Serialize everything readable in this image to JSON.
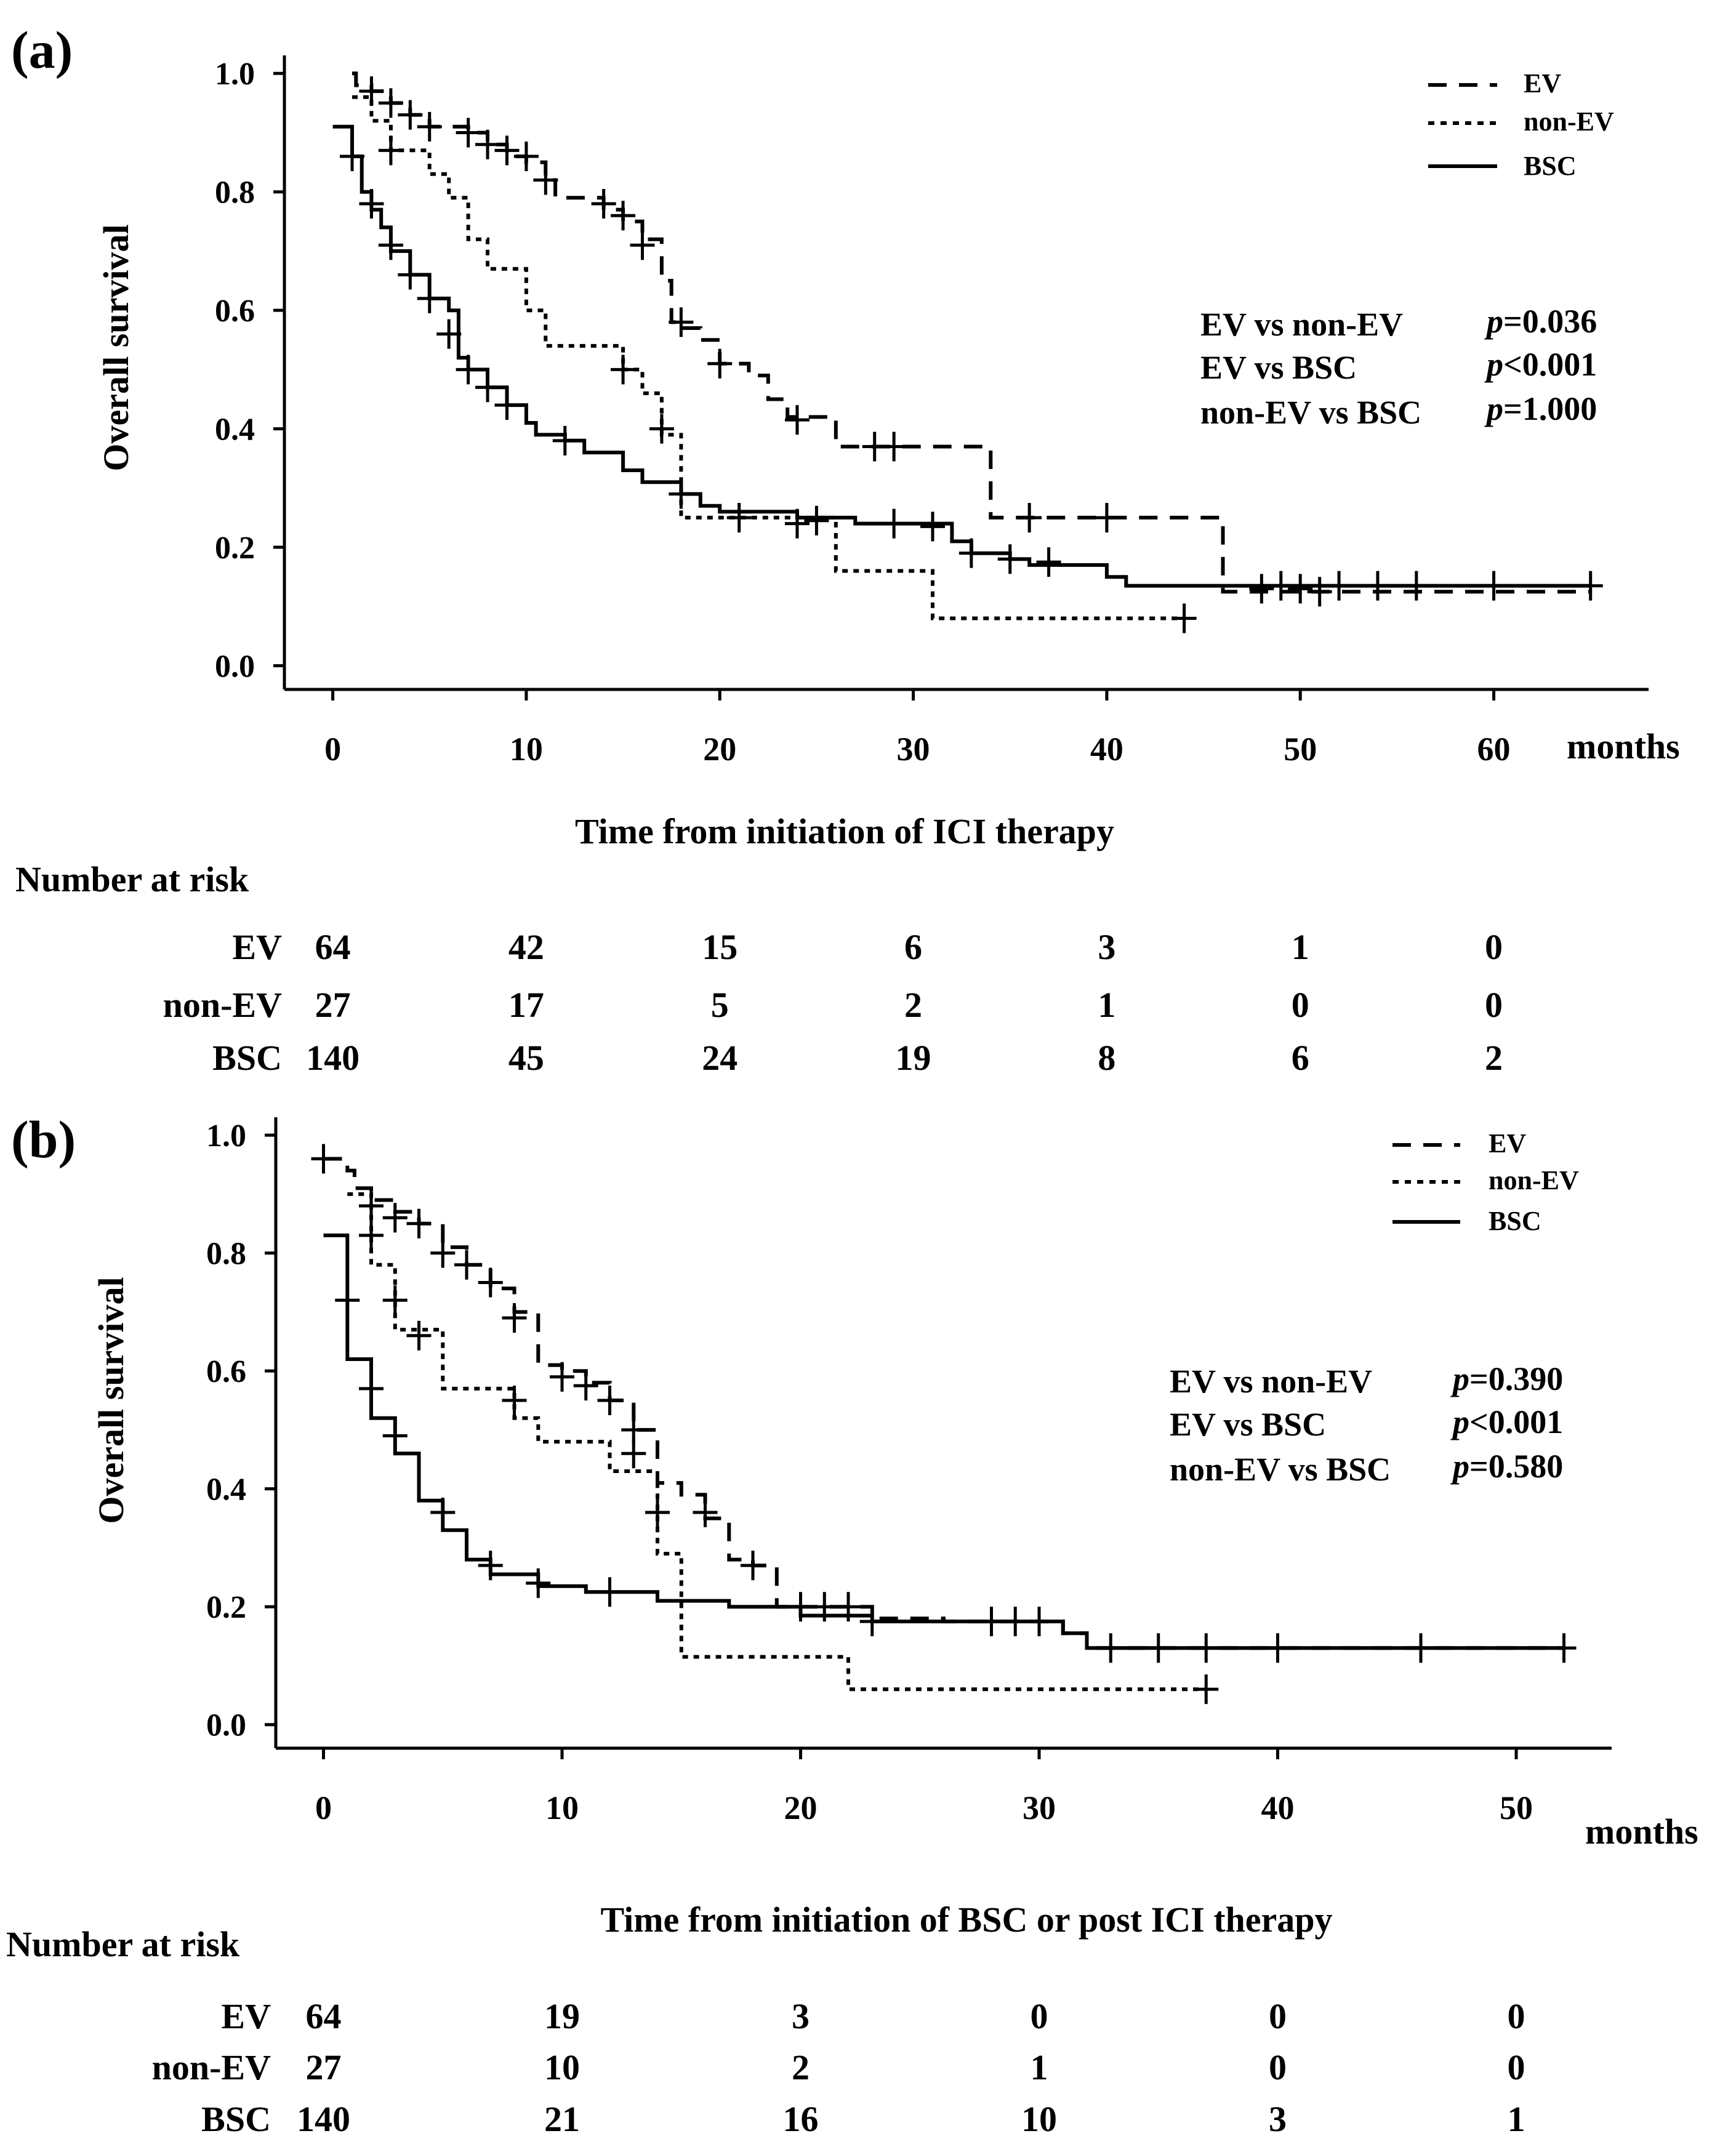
{
  "chart_data": [
    {
      "type": "line",
      "step": true,
      "panel_label": "(a)",
      "ylabel": "Overall survival",
      "xlabel": "Time from initiation of ICI therapy",
      "x_unit": "months",
      "xlim": [
        -2.5,
        68
      ],
      "ylim": [
        -0.04,
        1.02
      ],
      "x_ticks": [
        0,
        10,
        20,
        30,
        40,
        50,
        60
      ],
      "x_tick_labels": [
        "0",
        "10",
        "20",
        "30",
        "40",
        "50",
        "60"
      ],
      "y_ticks": [
        0,
        0.2,
        0.4,
        0.6,
        0.8,
        1.0
      ],
      "y_tick_labels": [
        "0.0",
        "0.2",
        "0.4",
        "0.6",
        "0.8",
        "1.0"
      ],
      "legend": [
        {
          "name": "EV",
          "style": "dashed"
        },
        {
          "name": "non-EV",
          "style": "dotted"
        },
        {
          "name": "BSC",
          "style": "solid"
        }
      ],
      "pvalues": [
        {
          "label": "EV vs non-EV",
          "p": "p",
          "value": "=0.036"
        },
        {
          "label": "EV vs BSC",
          "p": "p",
          "value": "<0.001"
        },
        {
          "label": "non-EV vs BSC",
          "p": "p",
          "value": "=1.000"
        }
      ],
      "series": [
        {
          "name": "EV",
          "style": "dashed",
          "steps": [
            [
              1,
              1.0
            ],
            [
              1.2,
              0.98
            ],
            [
              2,
              0.97
            ],
            [
              3,
              0.95
            ],
            [
              4,
              0.93
            ],
            [
              5,
              0.91
            ],
            [
              7,
              0.9
            ],
            [
              8,
              0.88
            ],
            [
              9,
              0.86
            ],
            [
              10,
              0.85
            ],
            [
              11,
              0.82
            ],
            [
              11.5,
              0.79
            ],
            [
              14,
              0.77
            ],
            [
              15,
              0.75
            ],
            [
              16,
              0.72
            ],
            [
              17,
              0.65
            ],
            [
              17.5,
              0.58
            ],
            [
              18,
              0.57
            ],
            [
              19,
              0.55
            ],
            [
              20,
              0.51
            ],
            [
              21.5,
              0.49
            ],
            [
              22.5,
              0.45
            ],
            [
              23.5,
              0.42
            ],
            [
              26,
              0.37
            ],
            [
              34,
              0.25
            ],
            [
              46,
              0.125
            ],
            [
              65,
              0.125
            ]
          ],
          "censors": [
            [
              2,
              0.97
            ],
            [
              3,
              0.95
            ],
            [
              4,
              0.93
            ],
            [
              5,
              0.91
            ],
            [
              7,
              0.9
            ],
            [
              8,
              0.88
            ],
            [
              9,
              0.87
            ],
            [
              10,
              0.86
            ],
            [
              11,
              0.82
            ],
            [
              14,
              0.78
            ],
            [
              15,
              0.76
            ],
            [
              16,
              0.71
            ],
            [
              18,
              0.58
            ],
            [
              20,
              0.51
            ],
            [
              24,
              0.415
            ],
            [
              28,
              0.37
            ],
            [
              29,
              0.37
            ],
            [
              36,
              0.25
            ],
            [
              40,
              0.25
            ],
            [
              48,
              0.13
            ],
            [
              50,
              0.13
            ],
            [
              51,
              0.125
            ]
          ]
        },
        {
          "name": "non-EV",
          "style": "dotted",
          "steps": [
            [
              1,
              0.96
            ],
            [
              2,
              0.92
            ],
            [
              3,
              0.87
            ],
            [
              5,
              0.83
            ],
            [
              6,
              0.79
            ],
            [
              7,
              0.72
            ],
            [
              8,
              0.67
            ],
            [
              10,
              0.6
            ],
            [
              11,
              0.54
            ],
            [
              15,
              0.5
            ],
            [
              16,
              0.46
            ],
            [
              17,
              0.39
            ],
            [
              18,
              0.25
            ],
            [
              26,
              0.16
            ],
            [
              31,
              0.08
            ],
            [
              44,
              0.08
            ]
          ],
          "censors": [
            [
              3,
              0.87
            ],
            [
              15,
              0.5
            ],
            [
              17,
              0.4
            ],
            [
              44,
              0.08
            ]
          ]
        },
        {
          "name": "BSC",
          "style": "solid",
          "steps": [
            [
              0,
              0.91
            ],
            [
              1,
              0.86
            ],
            [
              1.5,
              0.8
            ],
            [
              2,
              0.77
            ],
            [
              2.5,
              0.74
            ],
            [
              3,
              0.7
            ],
            [
              4,
              0.66
            ],
            [
              5,
              0.62
            ],
            [
              6,
              0.6
            ],
            [
              6.5,
              0.52
            ],
            [
              7,
              0.5
            ],
            [
              8,
              0.47
            ],
            [
              9,
              0.44
            ],
            [
              10,
              0.41
            ],
            [
              10.5,
              0.39
            ],
            [
              12,
              0.38
            ],
            [
              13,
              0.36
            ],
            [
              15,
              0.33
            ],
            [
              16,
              0.31
            ],
            [
              18,
              0.29
            ],
            [
              19,
              0.27
            ],
            [
              20,
              0.26
            ],
            [
              24,
              0.25
            ],
            [
              27,
              0.24
            ],
            [
              31,
              0.24
            ],
            [
              32,
              0.21
            ],
            [
              33,
              0.19
            ],
            [
              35,
              0.18
            ],
            [
              36,
              0.17
            ],
            [
              40,
              0.15
            ],
            [
              41,
              0.135
            ],
            [
              65,
              0.135
            ]
          ],
          "censors": [
            [
              1,
              0.86
            ],
            [
              2,
              0.78
            ],
            [
              3,
              0.71
            ],
            [
              4,
              0.66
            ],
            [
              5,
              0.62
            ],
            [
              6,
              0.56
            ],
            [
              7,
              0.5
            ],
            [
              8,
              0.47
            ],
            [
              9,
              0.44
            ],
            [
              12,
              0.38
            ],
            [
              18,
              0.29
            ],
            [
              21,
              0.25
            ],
            [
              24,
              0.24
            ],
            [
              25,
              0.245
            ],
            [
              29,
              0.24
            ],
            [
              31,
              0.235
            ],
            [
              33,
              0.19
            ],
            [
              35,
              0.18
            ],
            [
              37,
              0.175
            ],
            [
              49,
              0.135
            ],
            [
              52,
              0.135
            ],
            [
              54,
              0.135
            ],
            [
              56,
              0.135
            ],
            [
              60,
              0.135
            ],
            [
              65,
              0.135
            ]
          ]
        }
      ],
      "risk_table": {
        "title": "Number at risk",
        "times": [
          0,
          10,
          20,
          30,
          40,
          50,
          60
        ],
        "rows": [
          {
            "label": "EV",
            "values": [
              "64",
              "42",
              "15",
              "6",
              "3",
              "1",
              "0"
            ]
          },
          {
            "label": "non-EV",
            "values": [
              "27",
              "17",
              "5",
              "2",
              "1",
              "0",
              "0"
            ]
          },
          {
            "label": "BSC",
            "values": [
              "140",
              "45",
              "24",
              "19",
              "8",
              "6",
              "2"
            ]
          }
        ]
      }
    },
    {
      "type": "line",
      "step": true,
      "panel_label": "(b)",
      "ylabel": "Overall survival",
      "xlabel": "Time from initiation of BSC or post ICI therapy",
      "x_unit": "months",
      "xlim": [
        -2,
        54
      ],
      "ylim": [
        -0.04,
        1.02
      ],
      "x_ticks": [
        0,
        10,
        20,
        30,
        40,
        50
      ],
      "x_tick_labels": [
        "0",
        "10",
        "20",
        "30",
        "40",
        "50"
      ],
      "y_ticks": [
        0,
        0.2,
        0.4,
        0.6,
        0.8,
        1.0
      ],
      "y_tick_labels": [
        "0.0",
        "0.2",
        "0.4",
        "0.6",
        "0.8",
        "1.0"
      ],
      "legend": [
        {
          "name": "EV",
          "style": "dashed"
        },
        {
          "name": "non-EV",
          "style": "dotted"
        },
        {
          "name": "BSC",
          "style": "solid"
        }
      ],
      "pvalues": [
        {
          "label": "EV vs non-EV",
          "p": "p",
          "value": "=0.390"
        },
        {
          "label": "EV vs BSC",
          "p": "p",
          "value": "<0.001"
        },
        {
          "label": "non-EV vs BSC",
          "p": "p",
          "value": "=0.580"
        }
      ],
      "series": [
        {
          "name": "EV",
          "style": "dashed",
          "steps": [
            [
              0,
              0.96
            ],
            [
              1,
              0.94
            ],
            [
              1.3,
              0.91
            ],
            [
              2,
              0.89
            ],
            [
              3,
              0.87
            ],
            [
              4,
              0.85
            ],
            [
              5,
              0.81
            ],
            [
              6,
              0.78
            ],
            [
              7,
              0.74
            ],
            [
              8,
              0.7
            ],
            [
              9,
              0.61
            ],
            [
              10,
              0.6
            ],
            [
              11,
              0.58
            ],
            [
              12,
              0.55
            ],
            [
              13,
              0.5
            ],
            [
              14,
              0.41
            ],
            [
              15,
              0.39
            ],
            [
              16,
              0.35
            ],
            [
              17,
              0.28
            ],
            [
              18,
              0.27
            ],
            [
              19,
              0.2
            ],
            [
              23,
              0.18
            ],
            [
              26,
              0.175
            ],
            [
              31,
              0.155
            ],
            [
              32,
              0.13
            ],
            [
              52,
              0.13
            ]
          ],
          "censors": [
            [
              0,
              0.96
            ],
            [
              2,
              0.88
            ],
            [
              3,
              0.86
            ],
            [
              4,
              0.85
            ],
            [
              5,
              0.8
            ],
            [
              6,
              0.78
            ],
            [
              7,
              0.75
            ],
            [
              8,
              0.69
            ],
            [
              10,
              0.59
            ],
            [
              11,
              0.575
            ],
            [
              12,
              0.55
            ],
            [
              13,
              0.5
            ],
            [
              16,
              0.36
            ],
            [
              18,
              0.27
            ],
            [
              20,
              0.2
            ],
            [
              21,
              0.2
            ],
            [
              22,
              0.2
            ]
          ]
        },
        {
          "name": "non-EV",
          "style": "dotted",
          "steps": [
            [
              1,
              0.9
            ],
            [
              2,
              0.78
            ],
            [
              3,
              0.67
            ],
            [
              5,
              0.57
            ],
            [
              8,
              0.52
            ],
            [
              9,
              0.48
            ],
            [
              12,
              0.43
            ],
            [
              14,
              0.29
            ],
            [
              15,
              0.115
            ],
            [
              22,
              0.06
            ],
            [
              37,
              0.06
            ]
          ],
          "censors": [
            [
              2,
              0.83
            ],
            [
              3,
              0.72
            ],
            [
              4,
              0.66
            ],
            [
              8,
              0.55
            ],
            [
              13,
              0.46
            ],
            [
              14,
              0.36
            ],
            [
              37,
              0.06
            ]
          ]
        },
        {
          "name": "BSC",
          "style": "solid",
          "steps": [
            [
              0,
              0.83
            ],
            [
              1,
              0.62
            ],
            [
              2,
              0.52
            ],
            [
              3,
              0.46
            ],
            [
              4,
              0.38
            ],
            [
              5,
              0.33
            ],
            [
              6,
              0.28
            ],
            [
              7,
              0.255
            ],
            [
              9,
              0.235
            ],
            [
              11,
              0.225
            ],
            [
              14,
              0.21
            ],
            [
              17,
              0.2
            ],
            [
              20,
              0.185
            ],
            [
              23,
              0.175
            ],
            [
              31,
              0.155
            ],
            [
              32,
              0.13
            ],
            [
              52,
              0.13
            ]
          ],
          "censors": [
            [
              1,
              0.72
            ],
            [
              2,
              0.57
            ],
            [
              3,
              0.49
            ],
            [
              5,
              0.36
            ],
            [
              7,
              0.27
            ],
            [
              9,
              0.24
            ],
            [
              12,
              0.225
            ],
            [
              23,
              0.175
            ],
            [
              28,
              0.175
            ],
            [
              29,
              0.175
            ],
            [
              30,
              0.175
            ],
            [
              33,
              0.13
            ],
            [
              35,
              0.13
            ],
            [
              37,
              0.13
            ],
            [
              40,
              0.13
            ],
            [
              46,
              0.13
            ],
            [
              52,
              0.13
            ]
          ]
        }
      ],
      "risk_table": {
        "title": "Number at risk",
        "times": [
          0,
          10,
          20,
          30,
          40,
          50
        ],
        "rows": [
          {
            "label": "EV",
            "values": [
              "64",
              "19",
              "3",
              "0",
              "0",
              "0"
            ]
          },
          {
            "label": "non-EV",
            "values": [
              "27",
              "10",
              "2",
              "1",
              "0",
              "0"
            ]
          },
          {
            "label": "BSC",
            "values": [
              "140",
              "21",
              "16",
              "10",
              "3",
              "1"
            ]
          }
        ]
      }
    }
  ]
}
